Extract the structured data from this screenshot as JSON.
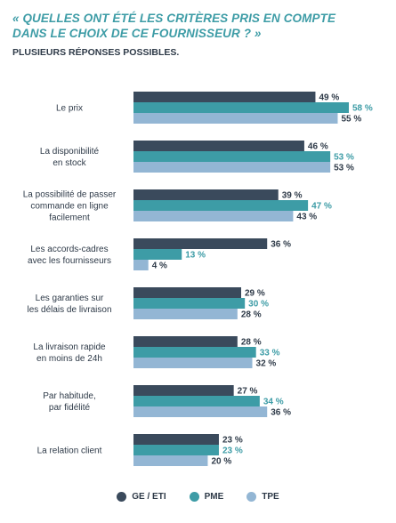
{
  "header": {
    "title_lines": [
      "« QUELLES ONT ÉTÉ LES CRITÈRES PRIS EN COMPTE",
      "DANS LE CHOIX DE CE FOURNISSEUR ? »"
    ],
    "subtitle": "PLUSIEURS RÉPONSES POSSIBLES."
  },
  "chart_data": {
    "type": "bar",
    "orientation": "horizontal",
    "categories": [
      [
        "Le prix"
      ],
      [
        "La disponibilité",
        "en stock"
      ],
      [
        "La possibilité de passer",
        "commande en ligne",
        "facilement"
      ],
      [
        "Les accords-cadres",
        "avec les fournisseurs"
      ],
      [
        "Les garanties sur",
        "les délais de livraison"
      ],
      [
        "La livraison rapide",
        "en moins de 24h"
      ],
      [
        "Par habitude,",
        "par fidélité"
      ],
      [
        "La relation client"
      ]
    ],
    "series": [
      {
        "name": "GE / ETI",
        "color": "#3a4a5c",
        "label_color": "#2e3a48",
        "values": [
          49,
          46,
          39,
          36,
          29,
          28,
          27,
          23
        ]
      },
      {
        "name": "PME",
        "color": "#3d9ca6",
        "label_color": "#3d9ca6",
        "values": [
          58,
          53,
          47,
          13,
          30,
          33,
          34,
          23
        ]
      },
      {
        "name": "TPE",
        "color": "#93b6d4",
        "label_color": "#2e3a48",
        "values": [
          55,
          53,
          43,
          4,
          28,
          32,
          36,
          20
        ]
      }
    ],
    "value_suffix": " %",
    "xlim": [
      0,
      58
    ],
    "legend_position": "bottom",
    "grid": false
  }
}
